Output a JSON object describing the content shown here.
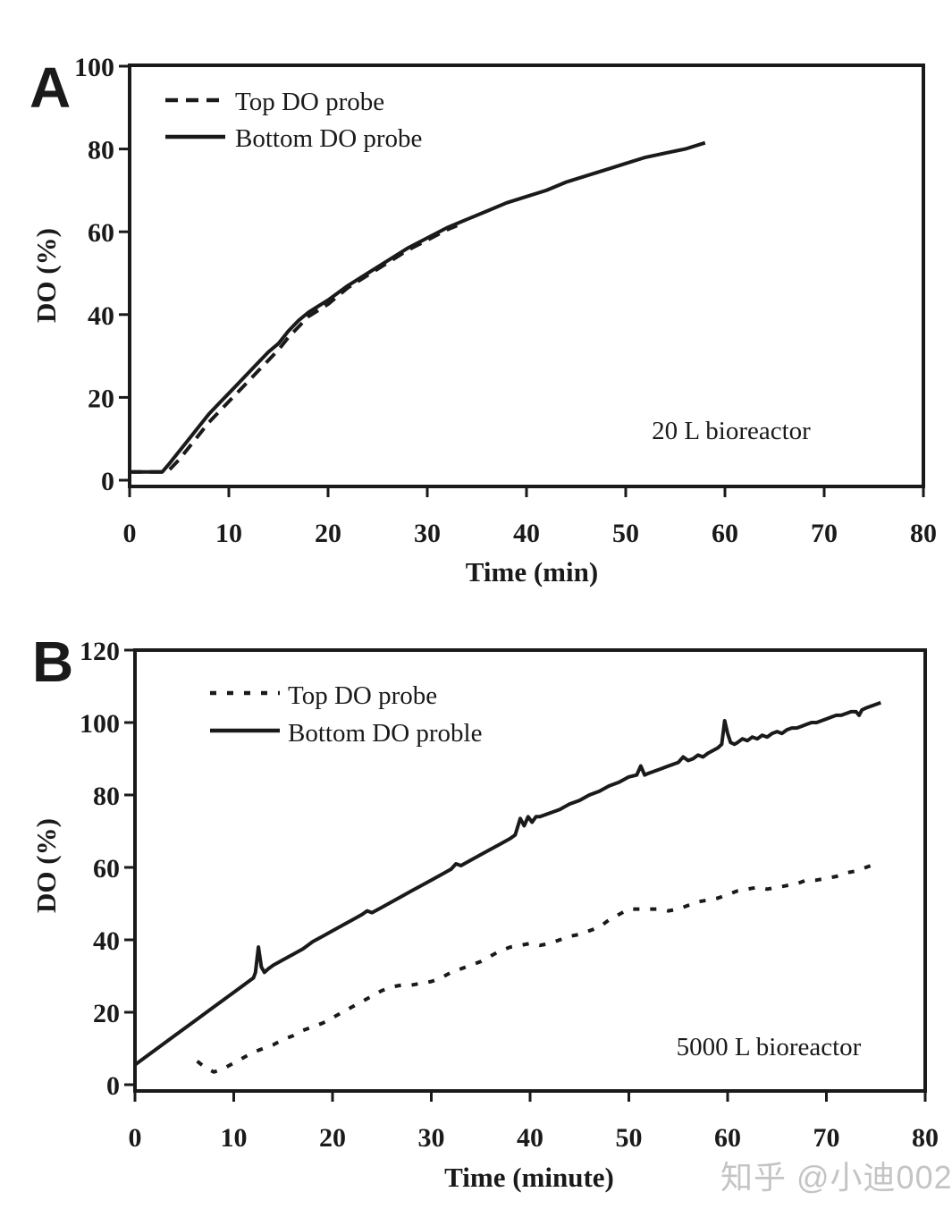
{
  "page": {
    "background": "#ffffff",
    "ink_color": "#1a1a1a",
    "watermark": {
      "text": "知乎 @小迪002",
      "color": "#c4c4c4"
    }
  },
  "chart_data": [
    {
      "id": "panel-a",
      "panel_label": "A",
      "type": "line",
      "title": "",
      "xlabel": "Time (min)",
      "ylabel": "DO (%)",
      "xlim": [
        0,
        80
      ],
      "ylim": [
        0,
        100
      ],
      "xticks": [
        0,
        10,
        20,
        30,
        40,
        50,
        60,
        70,
        80
      ],
      "yticks": [
        0,
        20,
        40,
        60,
        80,
        100
      ],
      "grid": false,
      "annotation": "20 L bioreactor",
      "legend_position": "top-left-inside",
      "legend": [
        {
          "label": "Top DO probe",
          "style": "dashed"
        },
        {
          "label": "Bottom DO probe",
          "style": "solid"
        }
      ],
      "series": [
        {
          "name": "Top DO probe",
          "style": "dashed",
          "points": [
            [
              0,
              2
            ],
            [
              3.8,
              2
            ],
            [
              5,
              5
            ],
            [
              6,
              8
            ],
            [
              7,
              11
            ],
            [
              8,
              14
            ],
            [
              9,
              16.5
            ],
            [
              10,
              19
            ],
            [
              11,
              21.5
            ],
            [
              12,
              24
            ],
            [
              13,
              26.5
            ],
            [
              14,
              29
            ],
            [
              15,
              31.5
            ],
            [
              16,
              34.5
            ],
            [
              17,
              37
            ],
            [
              18,
              39.5
            ],
            [
              19,
              41
            ],
            [
              20,
              42.5
            ],
            [
              21,
              44.5
            ],
            [
              22,
              46.5
            ],
            [
              24,
              49.5
            ],
            [
              26,
              52.5
            ],
            [
              28,
              55.5
            ],
            [
              30,
              58
            ],
            [
              32,
              60.5
            ],
            [
              33,
              61.5
            ]
          ]
        },
        {
          "name": "Bottom DO probe",
          "style": "solid",
          "points": [
            [
              0,
              2
            ],
            [
              3.3,
              2
            ],
            [
              4,
              4
            ],
            [
              5,
              7
            ],
            [
              6,
              10
            ],
            [
              7,
              13
            ],
            [
              8,
              16
            ],
            [
              9,
              18.5
            ],
            [
              10,
              21
            ],
            [
              11,
              23.5
            ],
            [
              12,
              26
            ],
            [
              13,
              28.5
            ],
            [
              14,
              31
            ],
            [
              15,
              33
            ],
            [
              16,
              36
            ],
            [
              17,
              38.5
            ],
            [
              18,
              40.5
            ],
            [
              19,
              42
            ],
            [
              20,
              43.5
            ],
            [
              22,
              47
            ],
            [
              24,
              50
            ],
            [
              26,
              53
            ],
            [
              28,
              56
            ],
            [
              30,
              58.5
            ],
            [
              32,
              61
            ],
            [
              34,
              63
            ],
            [
              36,
              65
            ],
            [
              38,
              67
            ],
            [
              40,
              68.5
            ],
            [
              42,
              70
            ],
            [
              44,
              72
            ],
            [
              46,
              73.5
            ],
            [
              48,
              75
            ],
            [
              50,
              76.5
            ],
            [
              52,
              78
            ],
            [
              54,
              79
            ],
            [
              56,
              80
            ],
            [
              58,
              81.5
            ]
          ]
        }
      ]
    },
    {
      "id": "panel-b",
      "panel_label": "B",
      "type": "line",
      "title": "",
      "xlabel": "Time (minute)",
      "ylabel": "DO (%)",
      "xlim": [
        0,
        80
      ],
      "ylim": [
        0,
        120
      ],
      "xticks": [
        0,
        10,
        20,
        30,
        40,
        50,
        60,
        70,
        80
      ],
      "yticks": [
        0,
        20,
        40,
        60,
        80,
        100,
        120
      ],
      "grid": false,
      "annotation": "5000 L bioreactor",
      "legend_position": "top-left-inside",
      "legend": [
        {
          "label": "Top DO probe",
          "style": "dotted"
        },
        {
          "label": "Bottom DO proble",
          "style": "solid"
        }
      ],
      "series": [
        {
          "name": "Top DO probe",
          "style": "dotted",
          "points": [
            [
              6.3,
              6.5
            ],
            [
              7.2,
              4.5
            ],
            [
              8,
              3.5
            ],
            [
              9,
              4.5
            ],
            [
              10,
              6
            ],
            [
              11,
              7.5
            ],
            [
              12,
              9
            ],
            [
              13,
              10
            ],
            [
              14,
              11
            ],
            [
              15,
              12.5
            ],
            [
              16,
              13.5
            ],
            [
              17,
              15
            ],
            [
              18,
              16
            ],
            [
              19,
              17
            ],
            [
              20,
              18.5
            ],
            [
              21,
              20
            ],
            [
              22,
              21.5
            ],
            [
              23,
              23
            ],
            [
              24,
              24.5
            ],
            [
              25,
              26
            ],
            [
              26,
              27
            ],
            [
              27,
              27.5
            ],
            [
              28,
              27.5
            ],
            [
              29,
              28
            ],
            [
              30,
              28.5
            ],
            [
              31,
              29.5
            ],
            [
              32,
              31
            ],
            [
              33,
              32
            ],
            [
              34,
              33
            ],
            [
              35,
              34
            ],
            [
              36,
              35.5
            ],
            [
              37,
              37
            ],
            [
              38,
              38
            ],
            [
              39,
              38.5
            ],
            [
              40,
              39
            ],
            [
              41,
              38.5
            ],
            [
              42,
              39
            ],
            [
              43,
              40
            ],
            [
              44,
              41
            ],
            [
              45,
              41.5
            ],
            [
              46,
              42.5
            ],
            [
              47,
              43.5
            ],
            [
              48,
              45.5
            ],
            [
              49,
              47
            ],
            [
              50,
              48.5
            ],
            [
              51,
              48.5
            ],
            [
              52,
              48.5
            ],
            [
              53,
              48.5
            ],
            [
              54,
              48
            ],
            [
              55,
              48.5
            ],
            [
              56,
              49.5
            ],
            [
              57,
              50.5
            ],
            [
              58,
              51
            ],
            [
              59,
              51.5
            ],
            [
              60,
              52.5
            ],
            [
              61,
              53.5
            ],
            [
              62,
              54
            ],
            [
              63,
              54.5
            ],
            [
              64,
              54
            ],
            [
              65,
              54.5
            ],
            [
              66,
              55
            ],
            [
              67,
              55.5
            ],
            [
              68,
              56.5
            ],
            [
              69,
              56.5
            ],
            [
              70,
              57
            ],
            [
              71,
              57.5
            ],
            [
              72,
              58.5
            ],
            [
              73,
              59
            ],
            [
              74,
              60
            ],
            [
              75,
              61
            ]
          ]
        },
        {
          "name": "Bottom DO proble",
          "style": "solid",
          "points": [
            [
              0,
              5.5
            ],
            [
              2,
              9.5
            ],
            [
              4,
              13.5
            ],
            [
              6,
              17.5
            ],
            [
              8,
              21.5
            ],
            [
              10,
              25.5
            ],
            [
              12,
              29.5
            ],
            [
              12.2,
              31
            ],
            [
              12.5,
              38
            ],
            [
              12.8,
              32.5
            ],
            [
              13.1,
              31
            ],
            [
              13.5,
              32
            ],
            [
              14,
              33
            ],
            [
              15,
              34.5
            ],
            [
              16,
              36
            ],
            [
              17,
              37.5
            ],
            [
              18,
              39.5
            ],
            [
              19,
              41
            ],
            [
              20,
              42.5
            ],
            [
              21,
              44
            ],
            [
              22,
              45.5
            ],
            [
              23,
              47
            ],
            [
              23.5,
              48
            ],
            [
              24,
              47.5
            ],
            [
              25,
              49
            ],
            [
              26,
              50.5
            ],
            [
              27,
              52
            ],
            [
              28,
              53.5
            ],
            [
              29,
              55
            ],
            [
              30,
              56.5
            ],
            [
              31,
              58
            ],
            [
              32,
              59.5
            ],
            [
              32.5,
              61
            ],
            [
              33,
              60.5
            ],
            [
              34,
              62
            ],
            [
              35,
              63.5
            ],
            [
              36,
              65
            ],
            [
              37,
              66.5
            ],
            [
              38,
              68
            ],
            [
              38.5,
              69
            ],
            [
              39,
              73.5
            ],
            [
              39.4,
              71.5
            ],
            [
              39.8,
              74
            ],
            [
              40.2,
              72.5
            ],
            [
              40.6,
              74
            ],
            [
              41,
              74
            ],
            [
              42,
              75
            ],
            [
              43,
              76
            ],
            [
              44,
              77.5
            ],
            [
              45,
              78.5
            ],
            [
              46,
              80
            ],
            [
              47,
              81
            ],
            [
              48,
              82.5
            ],
            [
              49,
              83.5
            ],
            [
              50,
              85
            ],
            [
              50.8,
              85.5
            ],
            [
              51.2,
              88
            ],
            [
              51.6,
              85.5
            ],
            [
              52,
              86
            ],
            [
              53,
              87
            ],
            [
              54,
              88
            ],
            [
              55,
              89
            ],
            [
              55.5,
              90.5
            ],
            [
              56,
              89.5
            ],
            [
              56.5,
              90
            ],
            [
              57,
              91
            ],
            [
              57.5,
              90.5
            ],
            [
              58,
              91.5
            ],
            [
              59,
              93
            ],
            [
              59.4,
              94
            ],
            [
              59.7,
              100.5
            ],
            [
              60,
              97
            ],
            [
              60.3,
              94.5
            ],
            [
              60.7,
              94
            ],
            [
              61,
              94.5
            ],
            [
              61.5,
              95.5
            ],
            [
              62,
              95
            ],
            [
              62.5,
              96
            ],
            [
              63,
              95.5
            ],
            [
              63.5,
              96.5
            ],
            [
              64,
              96
            ],
            [
              64.5,
              97
            ],
            [
              65,
              97.5
            ],
            [
              65.5,
              97
            ],
            [
              66,
              98
            ],
            [
              66.5,
              98.5
            ],
            [
              67,
              98.5
            ],
            [
              67.5,
              99
            ],
            [
              68,
              99.5
            ],
            [
              68.5,
              100
            ],
            [
              69,
              100
            ],
            [
              69.5,
              100.5
            ],
            [
              70,
              101
            ],
            [
              70.5,
              101.5
            ],
            [
              71,
              102
            ],
            [
              71.5,
              102
            ],
            [
              72,
              102.5
            ],
            [
              72.5,
              103
            ],
            [
              73,
              103
            ],
            [
              73.3,
              102
            ],
            [
              73.6,
              103.5
            ],
            [
              74,
              104
            ],
            [
              74.5,
              104.5
            ],
            [
              75,
              105
            ],
            [
              75.5,
              105.5
            ]
          ]
        }
      ]
    }
  ]
}
